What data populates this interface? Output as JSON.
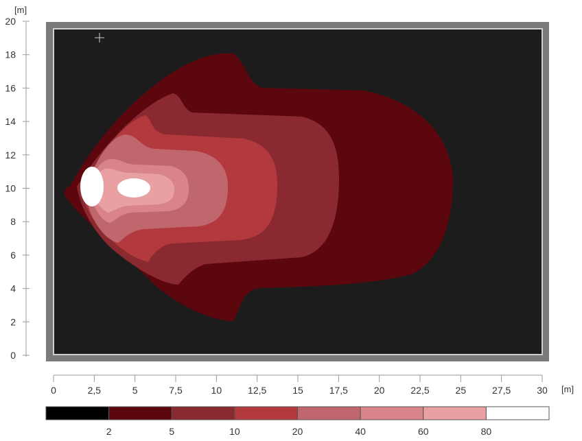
{
  "chart_data": {
    "type": "heatmap",
    "title": "",
    "xlabel": "[m]",
    "ylabel": "[m]",
    "xlim": [
      0,
      30
    ],
    "ylim": [
      0,
      20
    ],
    "x_ticks": [
      "0",
      "2,5",
      "5",
      "7,5",
      "10",
      "12,5",
      "15",
      "17,5",
      "20",
      "22,5",
      "25",
      "27,5",
      "30"
    ],
    "x_tick_values": [
      0,
      2.5,
      5,
      7.5,
      10,
      12.5,
      15,
      17.5,
      20,
      22.5,
      25,
      27.5,
      30
    ],
    "y_ticks": [
      "0",
      "2",
      "4",
      "6",
      "8",
      "10",
      "12",
      "14",
      "16",
      "18",
      "20"
    ],
    "y_tick_values": [
      0,
      2,
      4,
      6,
      8,
      10,
      12,
      14,
      16,
      18,
      20
    ],
    "background_color": "#1c1c1c",
    "frame_color": "#7a7a7a",
    "legend": {
      "position": "bottom",
      "labels": [
        "2",
        "5",
        "10",
        "20",
        "40",
        "60",
        "80"
      ],
      "colors": [
        "#000000",
        "#5c070d",
        "#8a2a30",
        "#b23a3e",
        "#c0676d",
        "#d88488",
        "#e8a0a3",
        "#ffffff"
      ]
    },
    "contour_levels": [
      {
        "min": 2,
        "max": 5,
        "color": "#5c070d",
        "x_extent": [
          0.5,
          24.5
        ],
        "y_extent": [
          1.8,
          18.0
        ]
      },
      {
        "min": 5,
        "max": 10,
        "color": "#8a2a30",
        "x_extent": [
          0.9,
          17.5
        ],
        "y_extent": [
          4.3,
          15.7
        ]
      },
      {
        "min": 10,
        "max": 20,
        "color": "#b23a3e",
        "x_extent": [
          1.2,
          13.8
        ],
        "y_extent": [
          5.7,
          14.3
        ]
      },
      {
        "min": 20,
        "max": 40,
        "color": "#c0676d",
        "x_extent": [
          1.5,
          10.8
        ],
        "y_extent": [
          6.7,
          13.2
        ]
      },
      {
        "min": 40,
        "max": 60,
        "color": "#d88488",
        "x_extent": [
          1.8,
          8.2
        ],
        "y_extent": [
          7.8,
          11.9
        ]
      },
      {
        "min": 60,
        "max": 80,
        "color": "#e8a0a3",
        "x_extent": [
          2.0,
          6.8
        ],
        "y_extent": [
          8.7,
          11.3
        ]
      },
      {
        "min": 80,
        "max": null,
        "color": "#ffffff",
        "regions": [
          {
            "cx": 2.3,
            "cy": 10.0,
            "rx": 0.6,
            "ry": 1.2
          },
          {
            "cx": 4.9,
            "cy": 10.0,
            "rx": 1.0,
            "ry": 0.55
          }
        ]
      }
    ]
  }
}
